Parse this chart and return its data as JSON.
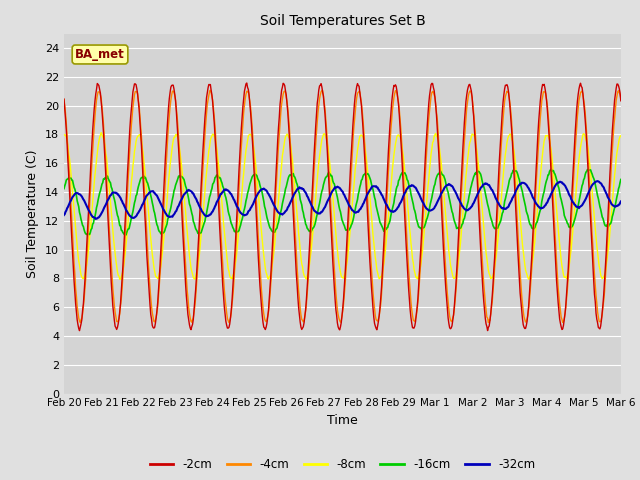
{
  "title": "Soil Temperatures Set B",
  "xlabel": "Time",
  "ylabel": "Soil Temperature (C)",
  "ylim": [
    0,
    25
  ],
  "yticks": [
    0,
    2,
    4,
    6,
    8,
    10,
    12,
    14,
    16,
    18,
    20,
    22,
    24
  ],
  "x_labels": [
    "Feb 20",
    "Feb 21",
    "Feb 22",
    "Feb 23",
    "Feb 24",
    "Feb 25",
    "Feb 26",
    "Feb 27",
    "Feb 28",
    "Feb 29",
    "Mar 1",
    "Mar 2",
    "Mar 3",
    "Mar 4",
    "Mar 5",
    "Mar 6"
  ],
  "colors": {
    "-2cm": "#cc0000",
    "-4cm": "#ff8800",
    "-8cm": "#ffff00",
    "-16cm": "#00cc00",
    "-32cm": "#0000bb"
  },
  "fig_bg": "#e0e0e0",
  "plot_bg": "#d4d4d4",
  "grid_color": "#ffffff",
  "annotation_text": "BA_met",
  "annotation_bg": "#ffffaa",
  "annotation_fg": "#880000",
  "annotation_border": "#999900",
  "n_days": 15,
  "base_temp": 13.0,
  "amp_2": 8.5,
  "amp_4": 8.0,
  "amp_8": 5.0,
  "amp_16": 2.0,
  "amp_32": 0.9,
  "phase_2": 0.0,
  "phase_4": 0.15,
  "phase_8": 0.6,
  "phase_16": 1.4,
  "phase_32": 2.8,
  "trend_2": 0.0,
  "trend_4": 0.0,
  "trend_8": 0.0,
  "trend_16": 0.04,
  "trend_32": 0.06
}
